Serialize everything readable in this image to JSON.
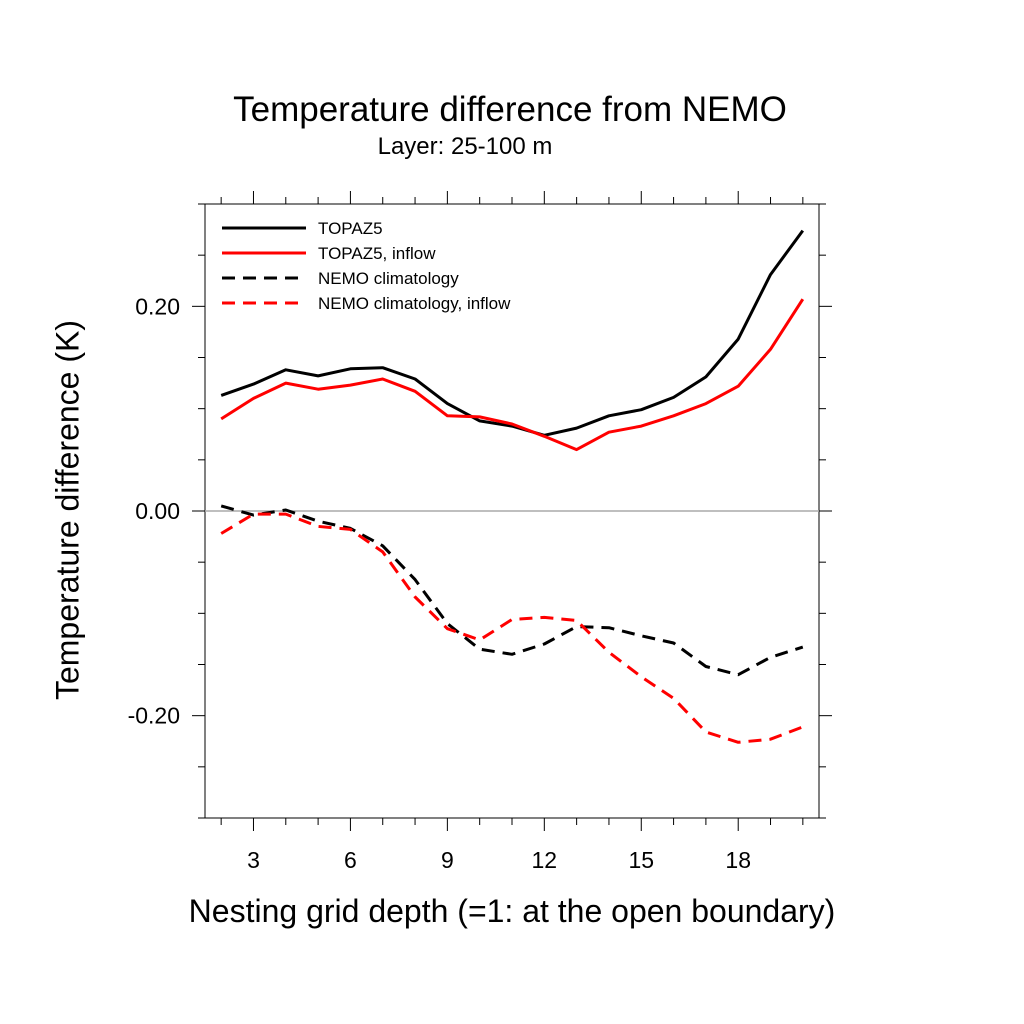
{
  "chart_data": {
    "type": "line",
    "title": "Temperature difference from NEMO",
    "subtitle": "Layer: 25-100 m",
    "xlabel": "Nesting grid depth (=1: at the open boundary)",
    "ylabel": "Temperature difference (K)",
    "xlim": [
      1.5,
      20.5
    ],
    "ylim": [
      -0.3,
      0.3
    ],
    "x_ticks": [
      3,
      6,
      9,
      12,
      15,
      18
    ],
    "x_tick_labels": [
      "3",
      "6",
      "9",
      "12",
      "15",
      "18"
    ],
    "y_ticks": [
      0.2,
      0.0,
      -0.2
    ],
    "y_tick_labels": [
      "0.20",
      "0.00",
      "-0.20"
    ],
    "reference_line": 0.0,
    "legend_position": "top-left",
    "x": [
      2,
      3,
      4,
      5,
      6,
      7,
      8,
      9,
      10,
      11,
      12,
      13,
      14,
      15,
      16,
      17,
      18,
      19,
      20
    ],
    "series": [
      {
        "name": "TOPAZ5",
        "color": "#000000",
        "dash": "solid",
        "values": [
          0.113,
          0.124,
          0.138,
          0.132,
          0.139,
          0.14,
          0.129,
          0.105,
          0.088,
          0.083,
          0.074,
          0.081,
          0.093,
          0.099,
          0.111,
          0.131,
          0.168,
          0.231,
          0.274
        ]
      },
      {
        "name": "TOPAZ5, inflow",
        "color": "#ff0000",
        "dash": "solid",
        "values": [
          0.09,
          0.11,
          0.125,
          0.119,
          0.123,
          0.129,
          0.117,
          0.093,
          0.092,
          0.085,
          0.073,
          0.06,
          0.077,
          0.083,
          0.093,
          0.105,
          0.122,
          0.158,
          0.207
        ]
      },
      {
        "name": "NEMO climatology",
        "color": "#000000",
        "dash": "dashed",
        "values": [
          0.005,
          -0.004,
          0.001,
          -0.01,
          -0.017,
          -0.034,
          -0.067,
          -0.11,
          -0.135,
          -0.14,
          -0.13,
          -0.113,
          -0.114,
          -0.122,
          -0.129,
          -0.152,
          -0.16,
          -0.143,
          -0.133
        ]
      },
      {
        "name": "NEMO climatology, inflow",
        "color": "#ff0000",
        "dash": "dashed",
        "values": [
          -0.022,
          -0.003,
          -0.003,
          -0.015,
          -0.018,
          -0.04,
          -0.084,
          -0.115,
          -0.126,
          -0.106,
          -0.104,
          -0.107,
          -0.138,
          -0.162,
          -0.183,
          -0.216,
          -0.226,
          -0.223,
          -0.211
        ]
      }
    ]
  }
}
